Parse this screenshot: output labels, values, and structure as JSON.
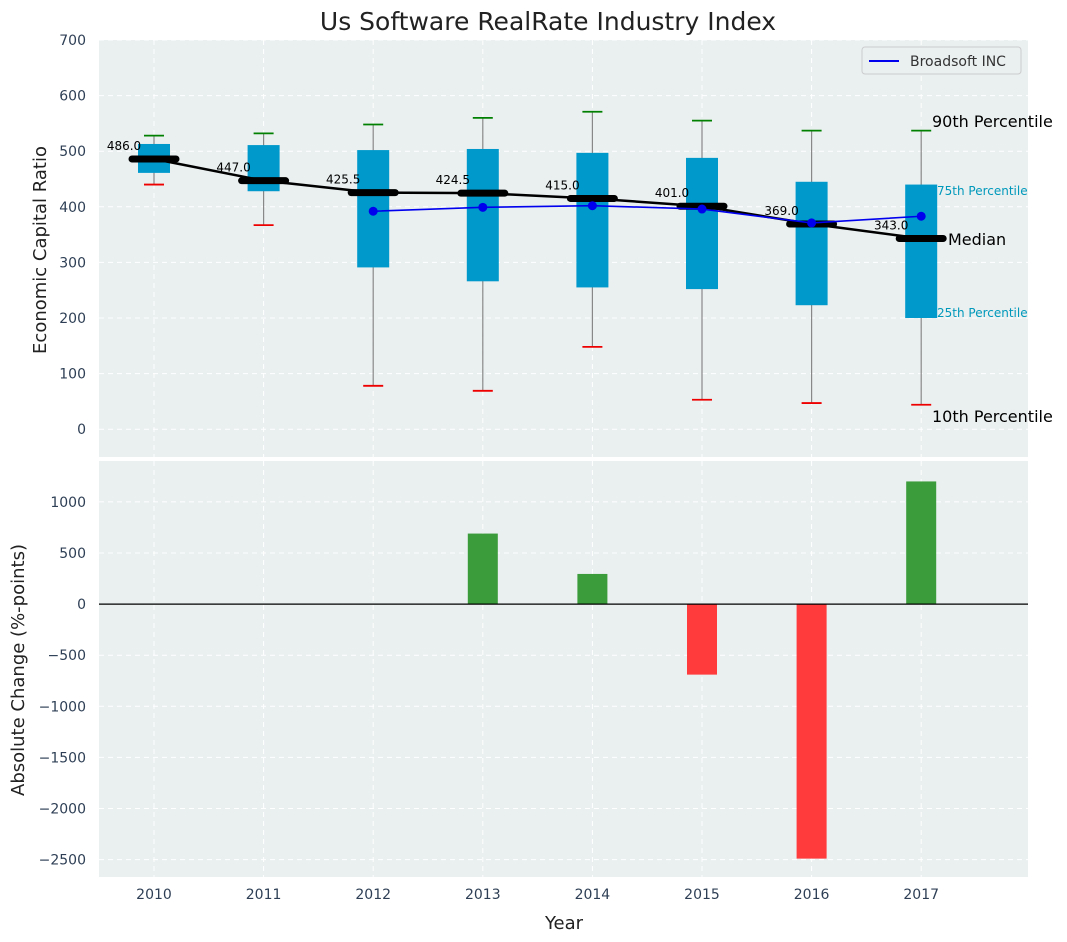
{
  "chart_data": [
    {
      "type": "box",
      "title": "Us Software RealRate Industry Index",
      "ylabel": "Economic Capital Ratio",
      "ylim": [
        -50,
        700
      ],
      "yticks": [
        0,
        100,
        200,
        300,
        400,
        500,
        600,
        700
      ],
      "categories": [
        "2010",
        "2011",
        "2012",
        "2013",
        "2014",
        "2015",
        "2016",
        "2017"
      ],
      "p10": [
        440,
        367,
        78,
        69,
        148,
        53,
        47,
        44
      ],
      "p25": [
        461,
        428,
        291,
        266,
        255,
        252,
        223,
        200
      ],
      "median": [
        486.0,
        447.0,
        425.5,
        424.5,
        415.0,
        401.0,
        369.0,
        343.0
      ],
      "p75": [
        513,
        511,
        502,
        504,
        497,
        488,
        445,
        440
      ],
      "p90": [
        528,
        532,
        548,
        560,
        571,
        555,
        537,
        537
      ],
      "median_labels": [
        "486.0",
        "447.0",
        "425.5",
        "424.5",
        "415.0",
        "401.0",
        "369.0",
        "343.0"
      ],
      "company": {
        "name": "Broadsoft INC",
        "years": [
          "2012",
          "2013",
          "2014",
          "2015",
          "2016",
          "2017"
        ],
        "values": [
          392,
          399,
          402,
          396,
          371,
          383
        ]
      },
      "annotations": {
        "p90": "90th Percentile",
        "p75": "75th Percentile",
        "median": "Median",
        "p25": "25th Percentile",
        "p10": "10th Percentile"
      },
      "colors": {
        "box": "#0099cc",
        "company": "#0000ee",
        "median_line": "#000000",
        "p90_cap": "#008000",
        "p10_cap": "#ee0000",
        "background": "#eaeff0"
      }
    },
    {
      "type": "bar",
      "ylabel": "Absolute Change (%-points)",
      "xlabel": "Year",
      "ylim": [
        -2670,
        1400
      ],
      "yticks": [
        -2500,
        -2000,
        -1500,
        -1000,
        -500,
        0,
        500,
        1000
      ],
      "ytick_labels": [
        "−2500",
        "−2000",
        "−1500",
        "−1000",
        "−500",
        "0",
        "500",
        "1000"
      ],
      "categories": [
        "2010",
        "2011",
        "2012",
        "2013",
        "2014",
        "2015",
        "2016",
        "2017"
      ],
      "values": [
        0,
        0,
        0,
        690,
        295,
        -690,
        -2490,
        1200
      ],
      "colors": {
        "positive": "#3a9c3a",
        "negative": "#ff3b3b"
      }
    }
  ]
}
